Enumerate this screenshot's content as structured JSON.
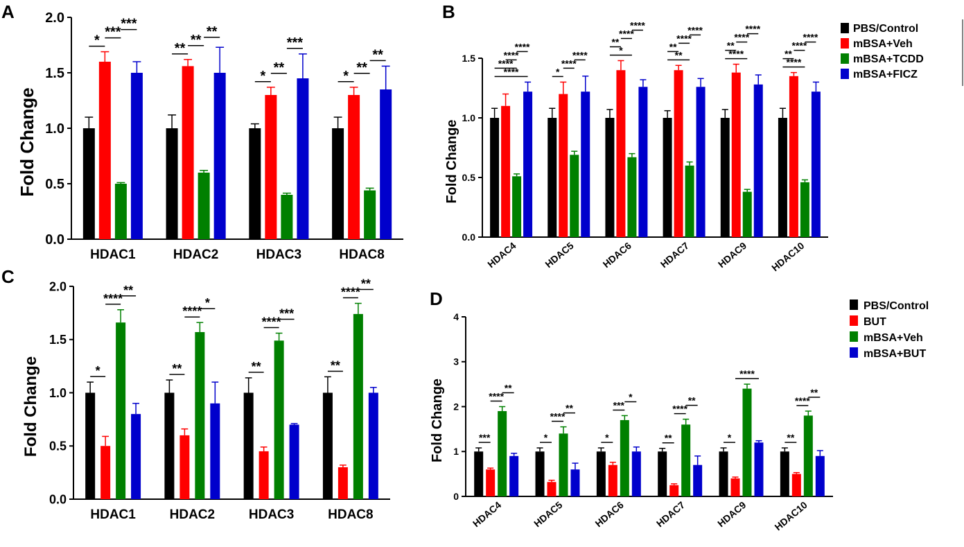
{
  "figure": {
    "panel_letters": [
      "A",
      "B",
      "C",
      "D"
    ],
    "legend_top": {
      "entries": [
        {
          "label": "PBS/Control",
          "color": "#000000"
        },
        {
          "label": "mBSA+Veh",
          "color": "#ff0000"
        },
        {
          "label": "mBSA+TCDD",
          "color": "#008000"
        },
        {
          "label": "mBSA+FICZ",
          "color": "#0000cc"
        }
      ]
    },
    "legend_bottom": {
      "entries": [
        {
          "label": "PBS/Control",
          "color": "#000000"
        },
        {
          "label": "BUT",
          "color": "#ff0000"
        },
        {
          "label": "mBSA+Veh",
          "color": "#008000"
        },
        {
          "label": "mBSA+BUT",
          "color": "#0000cc"
        }
      ]
    }
  },
  "chart_data": [
    {
      "panel": "A",
      "type": "bar",
      "ylabel": "Fold Change",
      "xlabel": "",
      "ylim": [
        0,
        2.0
      ],
      "yticks": [
        "0.0",
        "0.5",
        "1.0",
        "1.5",
        "2.0"
      ],
      "categories": [
        "HDAC1",
        "HDAC2",
        "HDAC3",
        "HDAC8"
      ],
      "rotate_labels": false,
      "series": [
        {
          "name": "PBS/Control",
          "color": "#000000",
          "values": [
            1.0,
            1.0,
            1.0,
            1.0
          ],
          "errors": [
            0.1,
            0.12,
            0.04,
            0.1
          ]
        },
        {
          "name": "mBSA+Veh",
          "color": "#ff0000",
          "values": [
            1.6,
            1.56,
            1.3,
            1.3
          ],
          "errors": [
            0.09,
            0.06,
            0.07,
            0.07
          ]
        },
        {
          "name": "mBSA+TCDD",
          "color": "#008000",
          "values": [
            0.5,
            0.6,
            0.4,
            0.44
          ],
          "errors": [
            0.01,
            0.02,
            0.015,
            0.02
          ]
        },
        {
          "name": "mBSA+FICZ",
          "color": "#0000cc",
          "values": [
            1.5,
            1.5,
            1.45,
            1.35
          ],
          "errors": [
            0.1,
            0.23,
            0.22,
            0.21
          ]
        }
      ],
      "significance": [
        {
          "category": 0,
          "from": 0,
          "to": 1,
          "label": "*"
        },
        {
          "category": 0,
          "from": 1,
          "to": 2,
          "label": "***"
        },
        {
          "category": 0,
          "from": 2,
          "to": 3,
          "label": "***"
        },
        {
          "category": 1,
          "from": 0,
          "to": 1,
          "label": "**"
        },
        {
          "category": 1,
          "from": 1,
          "to": 2,
          "label": "**"
        },
        {
          "category": 1,
          "from": 2,
          "to": 3,
          "label": "**"
        },
        {
          "category": 2,
          "from": 0,
          "to": 1,
          "label": "*"
        },
        {
          "category": 2,
          "from": 1,
          "to": 2,
          "label": "**"
        },
        {
          "category": 2,
          "from": 2,
          "to": 3,
          "label": "***"
        },
        {
          "category": 3,
          "from": 0,
          "to": 1,
          "label": "*"
        },
        {
          "category": 3,
          "from": 1,
          "to": 2,
          "label": "**"
        },
        {
          "category": 3,
          "from": 2,
          "to": 3,
          "label": "**"
        }
      ]
    },
    {
      "panel": "B",
      "type": "bar",
      "ylabel": "Fold Change",
      "xlabel": "",
      "ylim": [
        0,
        1.5
      ],
      "yticks": [
        "0.0",
        "0.5",
        "1.0",
        "1.5"
      ],
      "categories": [
        "HDAC4",
        "HDAC5",
        "HDAC6",
        "HDAC7",
        "HDAC9",
        "HDAC10"
      ],
      "rotate_labels": true,
      "series": [
        {
          "name": "PBS/Control",
          "color": "#000000",
          "values": [
            1.0,
            1.0,
            1.0,
            1.0,
            1.0,
            1.0
          ],
          "errors": [
            0.08,
            0.08,
            0.07,
            0.06,
            0.07,
            0.08
          ]
        },
        {
          "name": "mBSA+Veh",
          "color": "#ff0000",
          "values": [
            1.1,
            1.2,
            1.4,
            1.4,
            1.38,
            1.35
          ],
          "errors": [
            0.1,
            0.1,
            0.08,
            0.04,
            0.07,
            0.03
          ]
        },
        {
          "name": "mBSA+TCDD",
          "color": "#008000",
          "values": [
            0.51,
            0.69,
            0.67,
            0.6,
            0.38,
            0.46
          ],
          "errors": [
            0.02,
            0.03,
            0.03,
            0.03,
            0.02,
            0.02
          ]
        },
        {
          "name": "mBSA+FICZ",
          "color": "#0000cc",
          "values": [
            1.22,
            1.22,
            1.26,
            1.26,
            1.28,
            1.22
          ],
          "errors": [
            0.08,
            0.13,
            0.06,
            0.07,
            0.08,
            0.08
          ]
        }
      ],
      "significance": [
        {
          "category": 0,
          "from": 0,
          "to": 3,
          "label": "****"
        },
        {
          "category": 0,
          "from": 0,
          "to": 2,
          "label": "****"
        },
        {
          "category": 0,
          "from": 1,
          "to": 2,
          "label": "****"
        },
        {
          "category": 0,
          "from": 2,
          "to": 3,
          "label": "****"
        },
        {
          "category": 1,
          "from": 0,
          "to": 1,
          "label": "*"
        },
        {
          "category": 1,
          "from": 1,
          "to": 2,
          "label": "****"
        },
        {
          "category": 1,
          "from": 2,
          "to": 3,
          "label": "****"
        },
        {
          "category": 2,
          "from": 0,
          "to": 2,
          "label": "*"
        },
        {
          "category": 2,
          "from": 0,
          "to": 1,
          "label": "**"
        },
        {
          "category": 2,
          "from": 1,
          "to": 2,
          "label": "****"
        },
        {
          "category": 2,
          "from": 2,
          "to": 3,
          "label": "****"
        },
        {
          "category": 3,
          "from": 0,
          "to": 2,
          "label": "**"
        },
        {
          "category": 3,
          "from": 0,
          "to": 1,
          "label": "**"
        },
        {
          "category": 3,
          "from": 1,
          "to": 2,
          "label": "****"
        },
        {
          "category": 3,
          "from": 2,
          "to": 3,
          "label": "****"
        },
        {
          "category": 4,
          "from": 0,
          "to": 2,
          "label": "****"
        },
        {
          "category": 4,
          "from": 0,
          "to": 1,
          "label": "**"
        },
        {
          "category": 4,
          "from": 1,
          "to": 2,
          "label": "****"
        },
        {
          "category": 4,
          "from": 2,
          "to": 3,
          "label": "****"
        },
        {
          "category": 5,
          "from": 0,
          "to": 2,
          "label": "****"
        },
        {
          "category": 5,
          "from": 0,
          "to": 1,
          "label": "**"
        },
        {
          "category": 5,
          "from": 1,
          "to": 2,
          "label": "****"
        },
        {
          "category": 5,
          "from": 2,
          "to": 3,
          "label": "****"
        }
      ]
    },
    {
      "panel": "C",
      "type": "bar",
      "ylabel": "Fold Change",
      "xlabel": "",
      "ylim": [
        0,
        2.0
      ],
      "yticks": [
        "0.0",
        "0.5",
        "1.0",
        "1.5",
        "2.0"
      ],
      "categories": [
        "HDAC1",
        "HDAC2",
        "HDAC3",
        "HDAC8"
      ],
      "rotate_labels": false,
      "series": [
        {
          "name": "PBS/Control",
          "color": "#000000",
          "values": [
            1.0,
            1.0,
            1.0,
            1.0
          ],
          "errors": [
            0.1,
            0.12,
            0.14,
            0.15
          ]
        },
        {
          "name": "BUT",
          "color": "#ff0000",
          "values": [
            0.5,
            0.6,
            0.45,
            0.3
          ],
          "errors": [
            0.09,
            0.06,
            0.04,
            0.02
          ]
        },
        {
          "name": "mBSA+Veh",
          "color": "#008000",
          "values": [
            1.66,
            1.57,
            1.49,
            1.74
          ],
          "errors": [
            0.12,
            0.09,
            0.07,
            0.1
          ]
        },
        {
          "name": "mBSA+BUT",
          "color": "#0000cc",
          "values": [
            0.8,
            0.9,
            0.7,
            1.0
          ],
          "errors": [
            0.1,
            0.2,
            0.01,
            0.05
          ]
        }
      ],
      "significance": [
        {
          "category": 0,
          "from": 0,
          "to": 1,
          "label": "*"
        },
        {
          "category": 0,
          "from": 1,
          "to": 2,
          "label": "****"
        },
        {
          "category": 0,
          "from": 2,
          "to": 3,
          "label": "**"
        },
        {
          "category": 1,
          "from": 0,
          "to": 1,
          "label": "**"
        },
        {
          "category": 1,
          "from": 1,
          "to": 2,
          "label": "****"
        },
        {
          "category": 1,
          "from": 2,
          "to": 3,
          "label": "*"
        },
        {
          "category": 2,
          "from": 0,
          "to": 1,
          "label": "**"
        },
        {
          "category": 2,
          "from": 1,
          "to": 2,
          "label": "****"
        },
        {
          "category": 2,
          "from": 2,
          "to": 3,
          "label": "***"
        },
        {
          "category": 3,
          "from": 0,
          "to": 1,
          "label": "**"
        },
        {
          "category": 3,
          "from": 1,
          "to": 2,
          "label": "****"
        },
        {
          "category": 3,
          "from": 2,
          "to": 3,
          "label": "**"
        }
      ]
    },
    {
      "panel": "D",
      "type": "bar",
      "ylabel": "Fold Change",
      "xlabel": "",
      "ylim": [
        0,
        4
      ],
      "yticks": [
        "0",
        "1",
        "2",
        "3",
        "4"
      ],
      "categories": [
        "HDAC4",
        "HDAC5",
        "HDAC6",
        "HDAC7",
        "HDAC9",
        "HDAC10"
      ],
      "rotate_labels": true,
      "series": [
        {
          "name": "PBS/Control",
          "color": "#000000",
          "values": [
            1.0,
            1.0,
            1.0,
            1.0,
            1.0,
            1.0
          ],
          "errors": [
            0.08,
            0.08,
            0.08,
            0.07,
            0.08,
            0.08
          ]
        },
        {
          "name": "BUT",
          "color": "#ff0000",
          "values": [
            0.6,
            0.32,
            0.7,
            0.25,
            0.4,
            0.5
          ],
          "errors": [
            0.03,
            0.04,
            0.06,
            0.03,
            0.03,
            0.03
          ]
        },
        {
          "name": "mBSA+Veh",
          "color": "#008000",
          "values": [
            1.9,
            1.4,
            1.7,
            1.6,
            2.4,
            1.8
          ],
          "errors": [
            0.1,
            0.15,
            0.1,
            0.12,
            0.1,
            0.1
          ]
        },
        {
          "name": "mBSA+BUT",
          "color": "#0000cc",
          "values": [
            0.9,
            0.6,
            1.0,
            0.7,
            1.2,
            0.9
          ],
          "errors": [
            0.06,
            0.14,
            0.1,
            0.2,
            0.04,
            0.12
          ]
        }
      ],
      "significance": [
        {
          "category": 0,
          "from": 0,
          "to": 1,
          "label": "***"
        },
        {
          "category": 0,
          "from": 1,
          "to": 2,
          "label": "****"
        },
        {
          "category": 0,
          "from": 2,
          "to": 3,
          "label": "**"
        },
        {
          "category": 1,
          "from": 0,
          "to": 1,
          "label": "*"
        },
        {
          "category": 1,
          "from": 1,
          "to": 2,
          "label": "****"
        },
        {
          "category": 1,
          "from": 2,
          "to": 3,
          "label": "**"
        },
        {
          "category": 2,
          "from": 0,
          "to": 1,
          "label": "*"
        },
        {
          "category": 2,
          "from": 1,
          "to": 2,
          "label": "***"
        },
        {
          "category": 2,
          "from": 2,
          "to": 3,
          "label": "*"
        },
        {
          "category": 3,
          "from": 0,
          "to": 1,
          "label": "**"
        },
        {
          "category": 3,
          "from": 1,
          "to": 2,
          "label": "****"
        },
        {
          "category": 3,
          "from": 2,
          "to": 3,
          "label": "**"
        },
        {
          "category": 4,
          "from": 0,
          "to": 1,
          "label": "*"
        },
        {
          "category": 4,
          "from": 1,
          "to": 3,
          "label": "****"
        },
        {
          "category": 5,
          "from": 0,
          "to": 1,
          "label": "**"
        },
        {
          "category": 5,
          "from": 1,
          "to": 2,
          "label": "****"
        },
        {
          "category": 5,
          "from": 2,
          "to": 3,
          "label": "**"
        }
      ]
    }
  ]
}
